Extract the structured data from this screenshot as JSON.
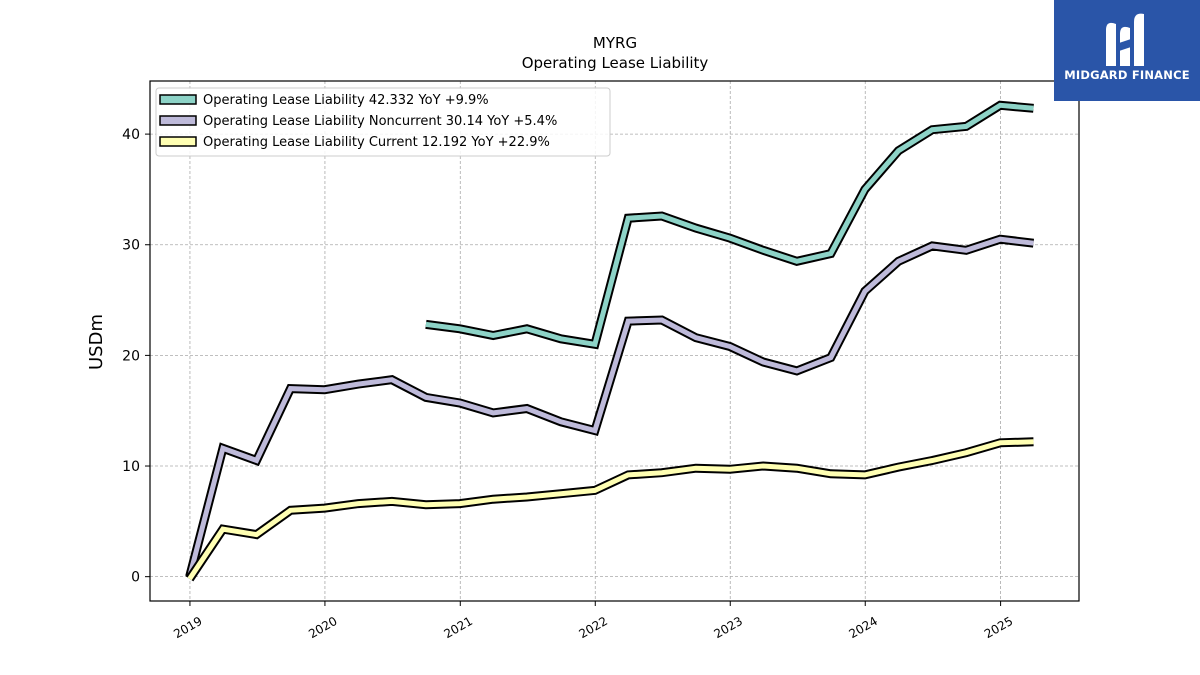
{
  "brand": {
    "name": "MIDGARD FINANCE",
    "bg_color": "#2a55a8",
    "icon": "midgard-logo-icon"
  },
  "chart_data": {
    "type": "line",
    "title": "MYRG",
    "subtitle": "Operating Lease Liability",
    "xlabel": "",
    "ylabel": "USDm",
    "ylim": [
      -2.2,
      44.8
    ],
    "yticks": [
      0,
      10,
      20,
      30,
      40
    ],
    "xlim": [
      "2018-09-15",
      "2025-08-01"
    ],
    "xticks": [
      "2019",
      "2020",
      "2021",
      "2022",
      "2023",
      "2024",
      "2025"
    ],
    "grid": true,
    "legend": "top-left",
    "series": [
      {
        "name": "Operating Lease Liability",
        "legend_label": "Operating Lease Liability  42.332 YoY +9.9%",
        "color": "#8dd3c7",
        "points": [
          [
            "2020-09-30",
            22.8
          ],
          [
            "2020-12-31",
            22.4
          ],
          [
            "2021-03-31",
            21.8
          ],
          [
            "2021-06-30",
            22.4
          ],
          [
            "2021-09-30",
            21.5
          ],
          [
            "2021-12-31",
            21.0
          ],
          [
            "2022-03-31",
            32.4
          ],
          [
            "2022-06-30",
            32.6
          ],
          [
            "2022-09-30",
            31.5
          ],
          [
            "2022-12-31",
            30.6
          ],
          [
            "2023-03-31",
            29.5
          ],
          [
            "2023-06-30",
            28.5
          ],
          [
            "2023-09-30",
            29.2
          ],
          [
            "2023-12-31",
            35.0
          ],
          [
            "2024-03-31",
            38.5
          ],
          [
            "2024-06-30",
            40.4
          ],
          [
            "2024-09-30",
            40.7
          ],
          [
            "2024-12-31",
            42.6
          ],
          [
            "2025-03-31",
            42.332
          ]
        ]
      },
      {
        "name": "Operating Lease Liability Noncurrent",
        "legend_label": "Operating Lease Liability Noncurrent  30.14 YoY +5.4%",
        "color": "#bebada",
        "points": [
          [
            "2018-12-31",
            0.0
          ],
          [
            "2019-03-31",
            11.6
          ],
          [
            "2019-06-30",
            10.5
          ],
          [
            "2019-09-30",
            17.0
          ],
          [
            "2019-12-31",
            16.9
          ],
          [
            "2020-03-31",
            17.4
          ],
          [
            "2020-06-30",
            17.8
          ],
          [
            "2020-09-30",
            16.2
          ],
          [
            "2020-12-31",
            15.7
          ],
          [
            "2021-03-31",
            14.8
          ],
          [
            "2021-06-30",
            15.2
          ],
          [
            "2021-09-30",
            14.0
          ],
          [
            "2021-12-31",
            13.2
          ],
          [
            "2022-03-31",
            23.1
          ],
          [
            "2022-06-30",
            23.2
          ],
          [
            "2022-09-30",
            21.6
          ],
          [
            "2022-12-31",
            20.8
          ],
          [
            "2023-03-31",
            19.4
          ],
          [
            "2023-06-30",
            18.6
          ],
          [
            "2023-09-30",
            19.8
          ],
          [
            "2023-12-31",
            25.8
          ],
          [
            "2024-03-31",
            28.5
          ],
          [
            "2024-06-30",
            29.9
          ],
          [
            "2024-09-30",
            29.5
          ],
          [
            "2024-12-31",
            30.5
          ],
          [
            "2025-03-31",
            30.14
          ]
        ]
      },
      {
        "name": "Operating Lease Liability Current",
        "legend_label": "Operating Lease Liability Current  12.192 YoY +22.9%",
        "color": "#ffffb3",
        "points": [
          [
            "2018-12-31",
            -0.2
          ],
          [
            "2019-03-31",
            4.3
          ],
          [
            "2019-06-30",
            3.8
          ],
          [
            "2019-09-30",
            6.0
          ],
          [
            "2019-12-31",
            6.2
          ],
          [
            "2020-03-31",
            6.6
          ],
          [
            "2020-06-30",
            6.8
          ],
          [
            "2020-09-30",
            6.5
          ],
          [
            "2020-12-31",
            6.6
          ],
          [
            "2021-03-31",
            7.0
          ],
          [
            "2021-06-30",
            7.2
          ],
          [
            "2021-09-30",
            7.5
          ],
          [
            "2021-12-31",
            7.8
          ],
          [
            "2022-03-31",
            9.2
          ],
          [
            "2022-06-30",
            9.4
          ],
          [
            "2022-09-30",
            9.8
          ],
          [
            "2022-12-31",
            9.7
          ],
          [
            "2023-03-31",
            10.0
          ],
          [
            "2023-06-30",
            9.8
          ],
          [
            "2023-09-30",
            9.3
          ],
          [
            "2023-12-31",
            9.2
          ],
          [
            "2024-03-31",
            9.9
          ],
          [
            "2024-06-30",
            10.5
          ],
          [
            "2024-09-30",
            11.2
          ],
          [
            "2024-12-31",
            12.1
          ],
          [
            "2025-03-31",
            12.192
          ]
        ]
      }
    ]
  }
}
